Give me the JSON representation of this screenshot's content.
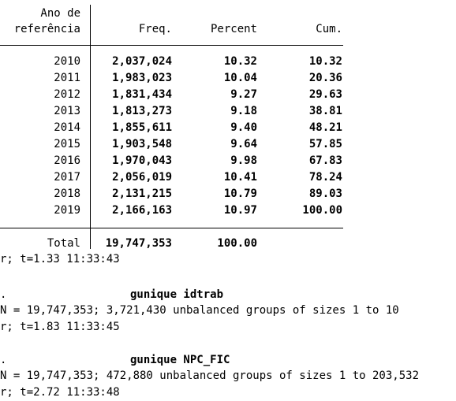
{
  "table": {
    "header": {
      "var_label_line1": "Ano de",
      "var_label_line2": "referência",
      "freq": "Freq.",
      "percent": "Percent",
      "cum": "Cum."
    },
    "rows": [
      {
        "year": "2010",
        "freq": "2,037,024",
        "percent": "10.32",
        "cum": "10.32"
      },
      {
        "year": "2011",
        "freq": "1,983,023",
        "percent": "10.04",
        "cum": "20.36"
      },
      {
        "year": "2012",
        "freq": "1,831,434",
        "percent": "9.27",
        "cum": "29.63"
      },
      {
        "year": "2013",
        "freq": "1,813,273",
        "percent": "9.18",
        "cum": "38.81"
      },
      {
        "year": "2014",
        "freq": "1,855,611",
        "percent": "9.40",
        "cum": "48.21"
      },
      {
        "year": "2015",
        "freq": "1,903,548",
        "percent": "9.64",
        "cum": "57.85"
      },
      {
        "year": "2016",
        "freq": "1,970,043",
        "percent": "9.98",
        "cum": "67.83"
      },
      {
        "year": "2017",
        "freq": "2,056,019",
        "percent": "10.41",
        "cum": "78.24"
      },
      {
        "year": "2018",
        "freq": "2,131,215",
        "percent": "10.79",
        "cum": "89.03"
      },
      {
        "year": "2019",
        "freq": "2,166,163",
        "percent": "10.97",
        "cum": "100.00"
      }
    ],
    "total": {
      "label": "Total",
      "freq": "19,747,353",
      "percent": "100.00"
    }
  },
  "output": {
    "timer1": "r; t=1.33 11:33:43",
    "prompt1": ".",
    "cmd1": "gunique idtrab",
    "result1": "N = 19,747,353; 3,721,430 unbalanced groups of sizes 1 to 10",
    "timer2": "r; t=1.83 11:33:45",
    "prompt2": ".",
    "cmd2": "gunique NPC_FIC",
    "result2": "N = 19,747,353; 472,880 unbalanced groups of sizes 1 to 203,532",
    "timer3": "r; t=2.72 11:33:48"
  }
}
